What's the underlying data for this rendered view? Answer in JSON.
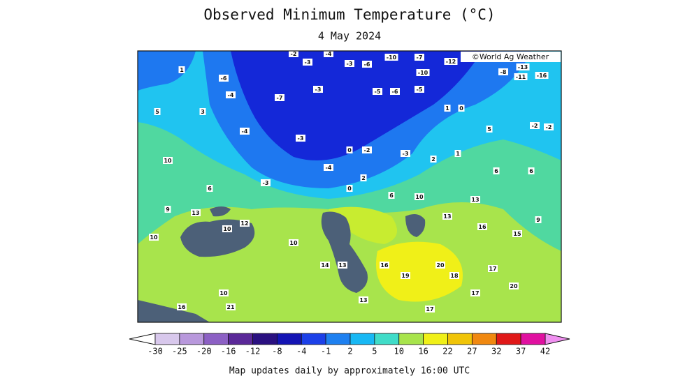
{
  "header": {
    "title": "Observed Minimum Temperature (°C)",
    "date": "4 May 2024"
  },
  "map": {
    "credit": "©World Ag Weather",
    "stations": [
      -10,
      -7,
      -10,
      -12,
      -8,
      -11,
      -16,
      -13,
      -4,
      -2,
      -3,
      -3,
      -6,
      -5,
      -6,
      -5,
      -3,
      -7,
      -4,
      -6,
      1,
      0,
      5,
      -2,
      -2,
      -4,
      -3,
      0,
      -2,
      -3,
      2,
      1,
      6,
      6,
      -4,
      2,
      0,
      6,
      10,
      13,
      13,
      16,
      15,
      9,
      13,
      10,
      12,
      10,
      14,
      13,
      16,
      19,
      20,
      18,
      17,
      20,
      17,
      17,
      13,
      10,
      16,
      21,
      9,
      10,
      6,
      10,
      5,
      1,
      3,
      -3
    ]
  },
  "colorbar": {
    "labels": [
      -30,
      -25,
      -20,
      -16,
      -12,
      -8,
      -4,
      -1,
      2,
      5,
      10,
      16,
      22,
      27,
      32,
      37,
      42
    ],
    "colors": [
      "#d8c8ec",
      "#b898dc",
      "#8c60c4",
      "#5a2898",
      "#2a1080",
      "#1414b4",
      "#1c40e8",
      "#1e80f0",
      "#18b8f4",
      "#40dcc8",
      "#a8e44c",
      "#f0f018",
      "#f0c408",
      "#f08810",
      "#e01818",
      "#e010a0"
    ],
    "under_color": "#ffffff",
    "over_color": "#f090f0"
  },
  "footer": "Map updates daily by approximately 16:00 UTC"
}
